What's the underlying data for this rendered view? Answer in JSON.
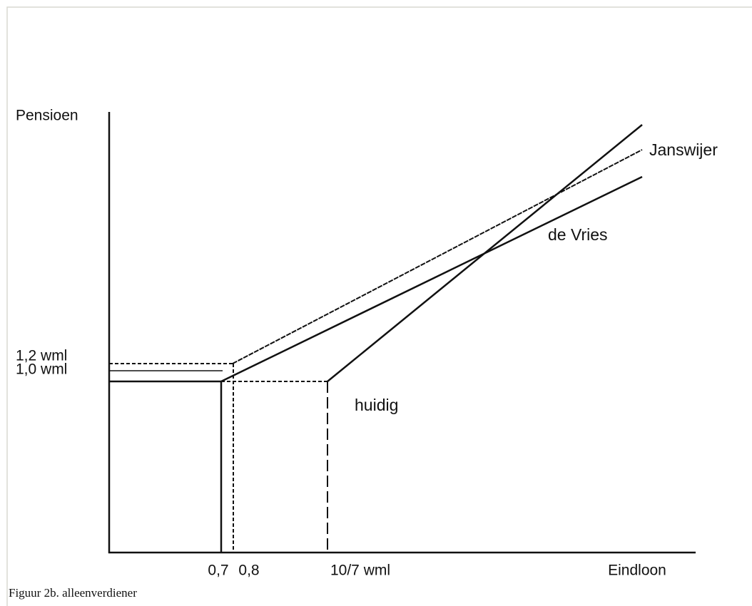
{
  "diagram": {
    "y_axis_label": "Pensioen",
    "x_axis_label": "Eindloon",
    "y_labels": [
      "1,2 wml",
      "1,0 wml"
    ],
    "x_labels": [
      "0,7",
      "0,8",
      "10/7 wml"
    ],
    "curves": [
      "Janswijer",
      "de Vries",
      "huidig"
    ],
    "caption": "Figuur 2b. alleenverdiener"
  }
}
